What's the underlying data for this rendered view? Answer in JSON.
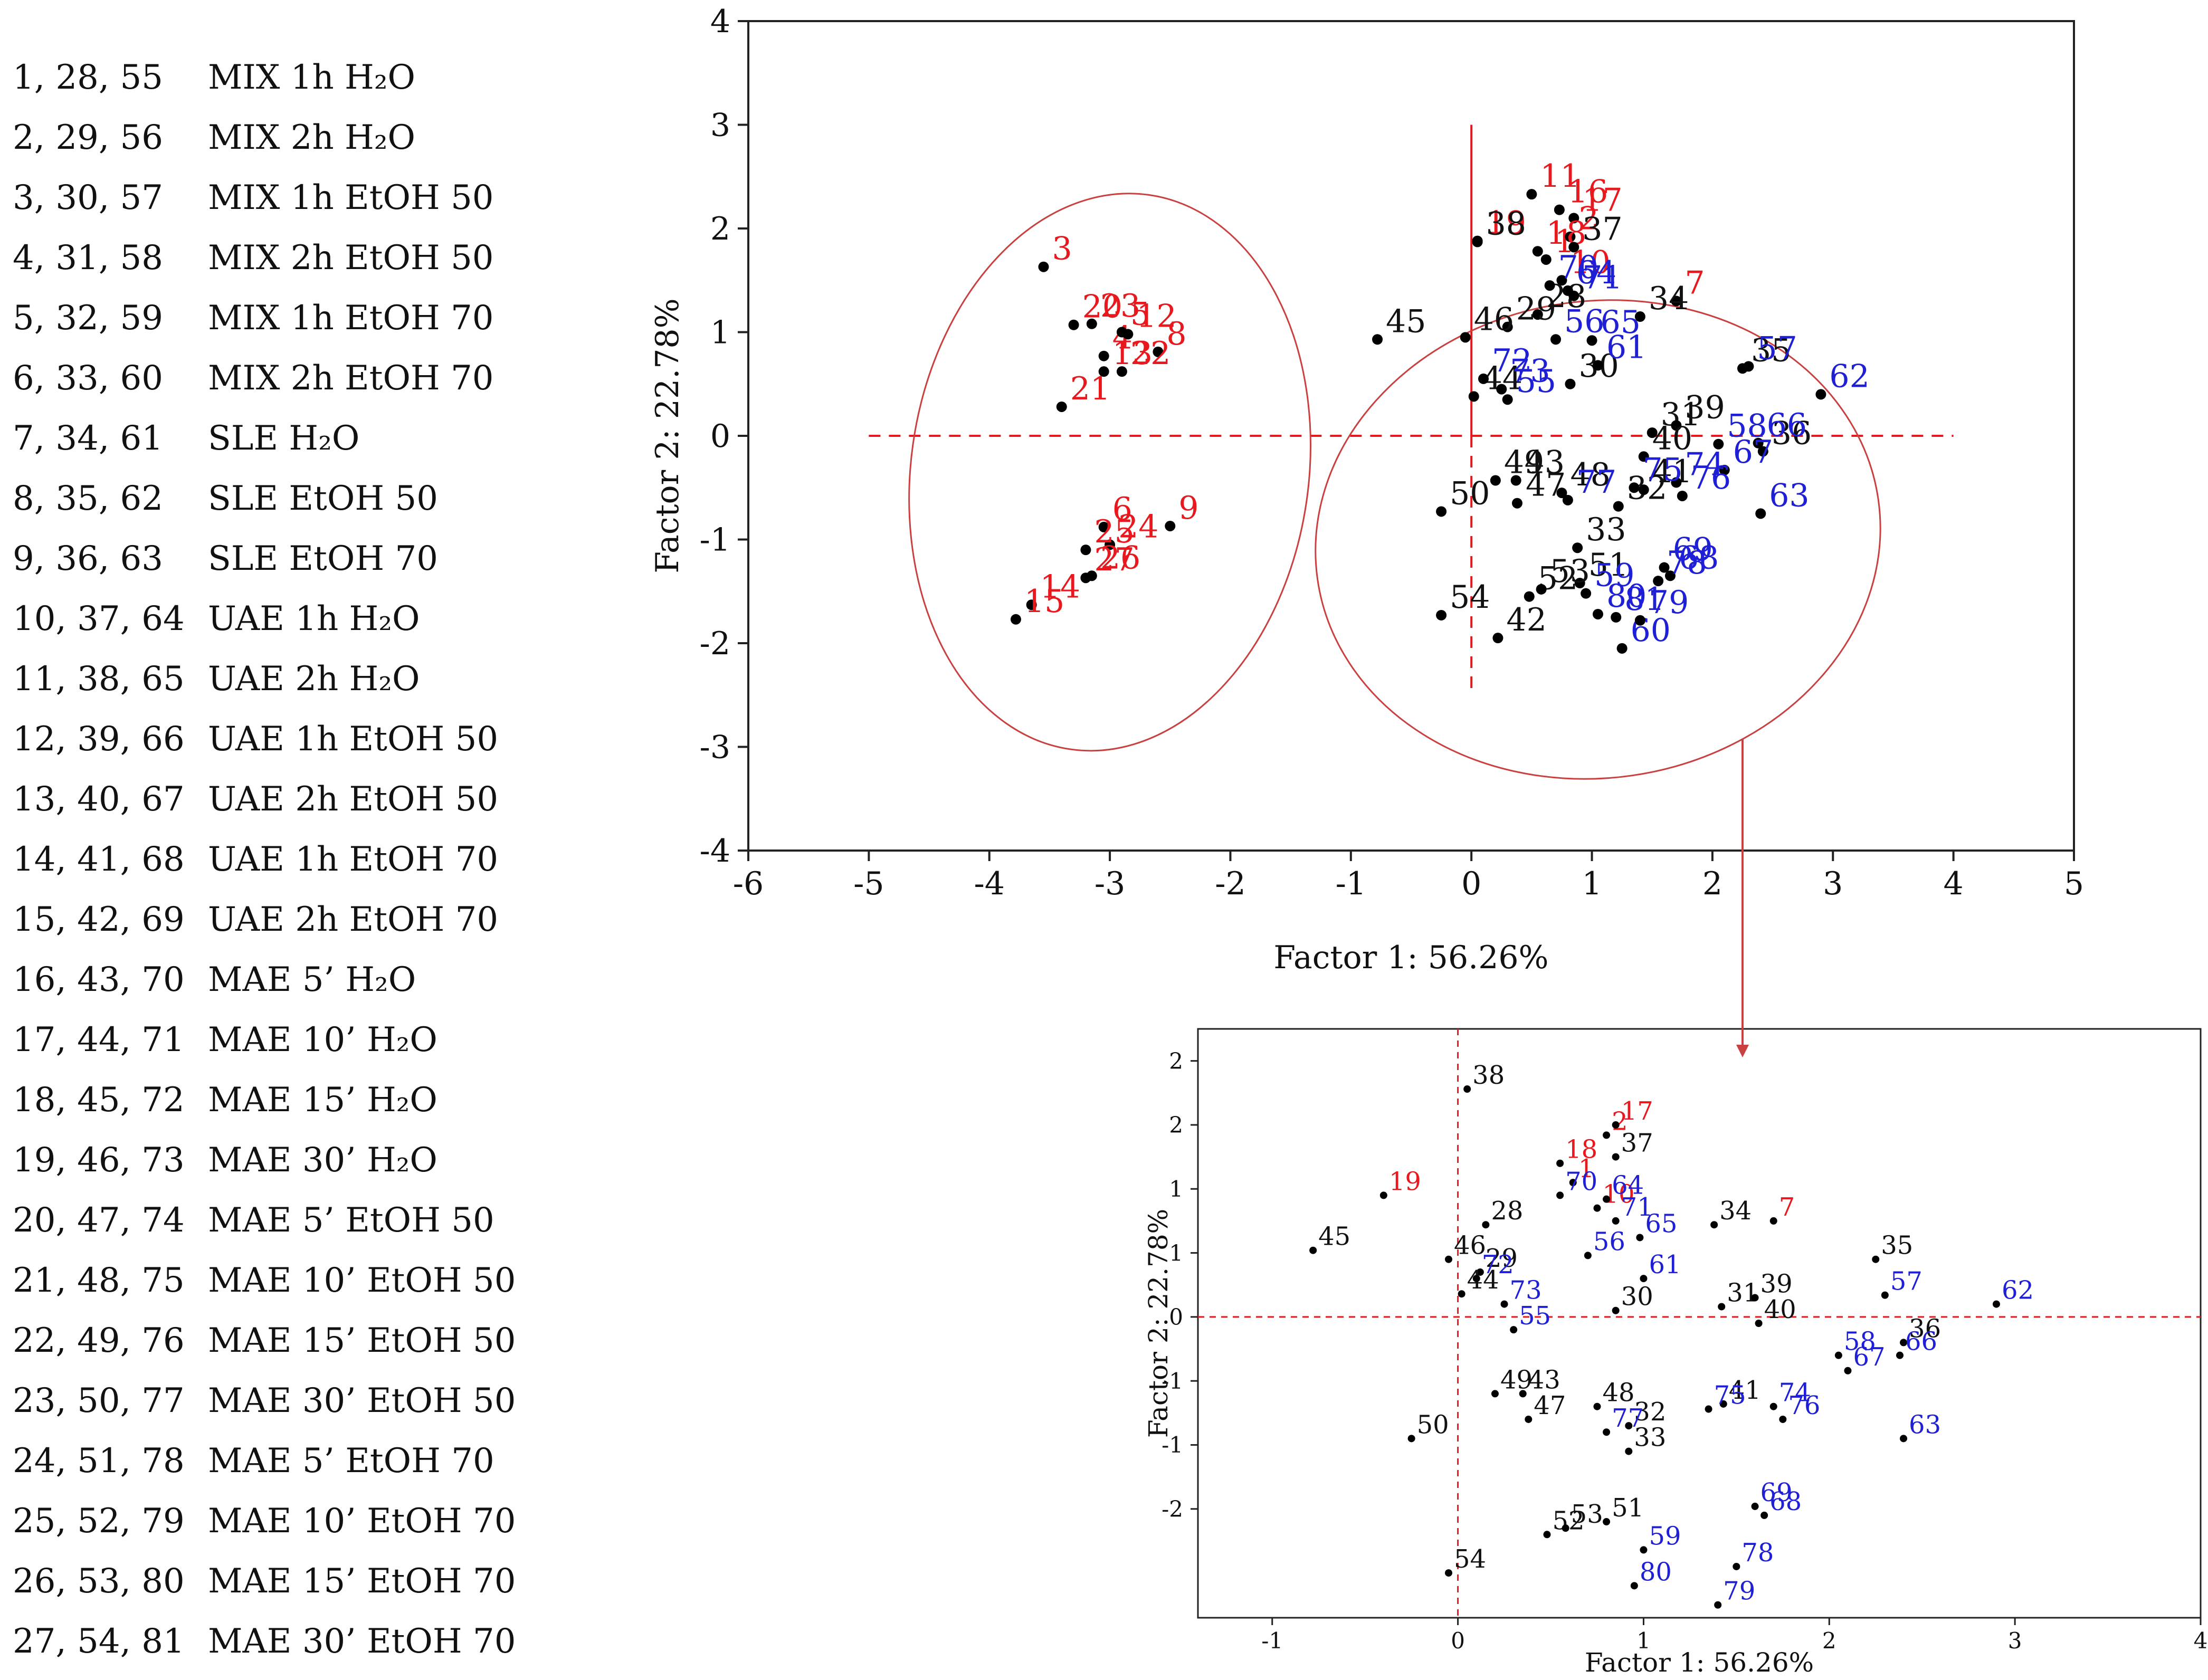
{
  "legend": [
    {
      "ids": "1, 28, 55",
      "label": "MIX 1h H₂O"
    },
    {
      "ids": "2, 29, 56",
      "label": "MIX 2h H₂O"
    },
    {
      "ids": "3, 30, 57",
      "label": "MIX 1h EtOH 50"
    },
    {
      "ids": "4, 31, 58",
      "label": "MIX 2h EtOH 50"
    },
    {
      "ids": "5, 32, 59",
      "label": "MIX 1h EtOH 70"
    },
    {
      "ids": "6, 33, 60",
      "label": "MIX 2h EtOH 70"
    },
    {
      "ids": "7, 34, 61",
      "label": "SLE H₂O"
    },
    {
      "ids": "8, 35, 62",
      "label": "SLE EtOH 50"
    },
    {
      "ids": "9, 36, 63",
      "label": "SLE EtOH 70"
    },
    {
      "ids": "10, 37, 64",
      "label": "UAE 1h H₂O"
    },
    {
      "ids": "11, 38, 65",
      "label": "UAE 2h H₂O"
    },
    {
      "ids": "12, 39, 66",
      "label": "UAE 1h EtOH 50"
    },
    {
      "ids": "13, 40, 67",
      "label": "UAE 2h EtOH 50"
    },
    {
      "ids": "14, 41, 68",
      "label": "UAE 1h EtOH 70"
    },
    {
      "ids": "15, 42, 69",
      "label": "UAE 2h EtOH 70"
    },
    {
      "ids": "16, 43, 70",
      "label": "MAE 5’ H₂O"
    },
    {
      "ids": "17, 44, 71",
      "label": "MAE 10’ H₂O"
    },
    {
      "ids": "18, 45, 72",
      "label": "MAE 15’ H₂O"
    },
    {
      "ids": "19, 46, 73",
      "label": "MAE 30’ H₂O"
    },
    {
      "ids": "20, 47, 74",
      "label": "MAE 5’ EtOH 50"
    },
    {
      "ids": "21, 48, 75",
      "label": "MAE 10’ EtOH 50"
    },
    {
      "ids": "22, 49, 76",
      "label": "MAE 15’ EtOH 50"
    },
    {
      "ids": "23, 50, 77",
      "label": "MAE 30’ EtOH 50"
    },
    {
      "ids": "24, 51, 78",
      "label": "MAE 5’ EtOH 70"
    },
    {
      "ids": "25, 52, 79",
      "label": "MAE 10’ EtOH 70"
    },
    {
      "ids": "26, 53, 80",
      "label": "MAE 15’ EtOH 70"
    },
    {
      "ids": "27, 54, 81",
      "label": "MAE 30’ EtOH 70"
    }
  ],
  "colors": {
    "group1": "#e8191e",
    "group2": "#111111",
    "group3": "#1f1fd6",
    "frame": "#222222",
    "ellipse": "#c84040",
    "refline": "#e8191e"
  },
  "chart_data": [
    {
      "type": "scatter",
      "title": "",
      "xlabel": "Factor 1: 56.26%",
      "ylabel": "Factor 2: 22.78%",
      "xlim": [
        -6,
        5
      ],
      "ylim": [
        -4,
        4
      ],
      "xticks": [
        "-6",
        "-5",
        "-4",
        "-3",
        "-2",
        "-1",
        "0",
        "1",
        "2",
        "3",
        "4",
        "5"
      ],
      "yticks": [
        "-4",
        "-3",
        "-2",
        "-1",
        "0",
        "1",
        "2",
        "3",
        "4"
      ],
      "points": [
        {
          "label": "1",
          "x": 0.62,
          "y": 1.7,
          "group": 1
        },
        {
          "label": "2",
          "x": 0.82,
          "y": 1.92,
          "group": 1
        },
        {
          "label": "3",
          "x": -3.55,
          "y": 1.63,
          "group": 1
        },
        {
          "label": "4",
          "x": -3.05,
          "y": 0.77,
          "group": 1
        },
        {
          "label": "5",
          "x": -2.9,
          "y": 1.0,
          "group": 1
        },
        {
          "label": "6",
          "x": -3.05,
          "y": -0.88,
          "group": 1
        },
        {
          "label": "7",
          "x": 1.7,
          "y": 1.3,
          "group": 1
        },
        {
          "label": "8",
          "x": -2.6,
          "y": 0.81,
          "group": 1
        },
        {
          "label": "9",
          "x": -2.5,
          "y": -0.87,
          "group": 1
        },
        {
          "label": "10",
          "x": 0.75,
          "y": 1.5,
          "group": 1
        },
        {
          "label": "11",
          "x": 0.5,
          "y": 2.33,
          "group": 1
        },
        {
          "label": "12",
          "x": -2.85,
          "y": 0.98,
          "group": 1
        },
        {
          "label": "13",
          "x": -3.05,
          "y": 0.62,
          "group": 1
        },
        {
          "label": "14",
          "x": -3.65,
          "y": -1.63,
          "group": 1
        },
        {
          "label": "15",
          "x": -3.78,
          "y": -1.77,
          "group": 1
        },
        {
          "label": "16",
          "x": 0.73,
          "y": 2.18,
          "group": 1
        },
        {
          "label": "17",
          "x": 0.85,
          "y": 2.1,
          "group": 1
        },
        {
          "label": "18",
          "x": 0.55,
          "y": 1.78,
          "group": 1
        },
        {
          "label": "19",
          "x": 0.05,
          "y": 1.88,
          "group": 1
        },
        {
          "label": "20",
          "x": -3.3,
          "y": 1.07,
          "group": 1
        },
        {
          "label": "21",
          "x": -3.4,
          "y": 0.28,
          "group": 1
        },
        {
          "label": "22",
          "x": -2.9,
          "y": 0.62,
          "group": 1
        },
        {
          "label": "23",
          "x": -3.15,
          "y": 1.08,
          "group": 1
        },
        {
          "label": "24",
          "x": -3.0,
          "y": -1.05,
          "group": 1
        },
        {
          "label": "25",
          "x": -3.2,
          "y": -1.1,
          "group": 1
        },
        {
          "label": "26",
          "x": -3.15,
          "y": -1.35,
          "group": 1
        },
        {
          "label": "27",
          "x": -3.2,
          "y": -1.37,
          "group": 1
        },
        {
          "label": "28",
          "x": 0.55,
          "y": 1.17,
          "group": 2
        },
        {
          "label": "29",
          "x": 0.3,
          "y": 1.05,
          "group": 2
        },
        {
          "label": "30",
          "x": 0.82,
          "y": 0.5,
          "group": 2
        },
        {
          "label": "31",
          "x": 1.5,
          "y": 0.03,
          "group": 2
        },
        {
          "label": "32",
          "x": 1.22,
          "y": -0.68,
          "group": 2
        },
        {
          "label": "33",
          "x": 0.88,
          "y": -1.08,
          "group": 2
        },
        {
          "label": "34",
          "x": 1.4,
          "y": 1.15,
          "group": 2
        },
        {
          "label": "35",
          "x": 2.25,
          "y": 0.65,
          "group": 2
        },
        {
          "label": "36",
          "x": 2.42,
          "y": -0.15,
          "group": 2
        },
        {
          "label": "37",
          "x": 0.85,
          "y": 1.82,
          "group": 2
        },
        {
          "label": "38",
          "x": 0.05,
          "y": 1.87,
          "group": 2
        },
        {
          "label": "39",
          "x": 1.7,
          "y": 0.1,
          "group": 2
        },
        {
          "label": "40",
          "x": 1.43,
          "y": -0.2,
          "group": 2
        },
        {
          "label": "41",
          "x": 1.43,
          "y": -0.52,
          "group": 2
        },
        {
          "label": "42",
          "x": 0.22,
          "y": -1.95,
          "group": 2
        },
        {
          "label": "43",
          "x": 0.37,
          "y": -0.43,
          "group": 2
        },
        {
          "label": "44",
          "x": 0.02,
          "y": 0.38,
          "group": 2
        },
        {
          "label": "45",
          "x": -0.78,
          "y": 0.93,
          "group": 2
        },
        {
          "label": "46",
          "x": -0.05,
          "y": 0.95,
          "group": 2
        },
        {
          "label": "47",
          "x": 0.38,
          "y": -0.65,
          "group": 2
        },
        {
          "label": "48",
          "x": 0.75,
          "y": -0.55,
          "group": 2
        },
        {
          "label": "49",
          "x": 0.2,
          "y": -0.43,
          "group": 2
        },
        {
          "label": "50",
          "x": -0.25,
          "y": -0.73,
          "group": 2
        },
        {
          "label": "51",
          "x": 0.9,
          "y": -1.42,
          "group": 2
        },
        {
          "label": "52",
          "x": 0.48,
          "y": -1.55,
          "group": 2
        },
        {
          "label": "53",
          "x": 0.58,
          "y": -1.48,
          "group": 2
        },
        {
          "label": "54",
          "x": -0.25,
          "y": -1.73,
          "group": 2
        },
        {
          "label": "55",
          "x": 0.3,
          "y": 0.35,
          "group": 3
        },
        {
          "label": "56",
          "x": 0.7,
          "y": 0.93,
          "group": 3
        },
        {
          "label": "57",
          "x": 2.3,
          "y": 0.67,
          "group": 3
        },
        {
          "label": "58",
          "x": 2.05,
          "y": -0.08,
          "group": 3
        },
        {
          "label": "59",
          "x": 0.95,
          "y": -1.52,
          "group": 3
        },
        {
          "label": "60",
          "x": 1.25,
          "y": -2.05,
          "group": 3
        },
        {
          "label": "61",
          "x": 1.05,
          "y": 0.68,
          "group": 3
        },
        {
          "label": "62",
          "x": 2.9,
          "y": 0.4,
          "group": 3
        },
        {
          "label": "63",
          "x": 2.4,
          "y": -0.75,
          "group": 3
        },
        {
          "label": "64",
          "x": 0.8,
          "y": 1.4,
          "group": 3
        },
        {
          "label": "65",
          "x": 1.0,
          "y": 0.92,
          "group": 3
        },
        {
          "label": "66",
          "x": 2.38,
          "y": -0.07,
          "group": 3
        },
        {
          "label": "67",
          "x": 2.1,
          "y": -0.33,
          "group": 3
        },
        {
          "label": "68",
          "x": 1.65,
          "y": -1.35,
          "group": 3
        },
        {
          "label": "69",
          "x": 1.6,
          "y": -1.27,
          "group": 3
        },
        {
          "label": "70",
          "x": 0.65,
          "y": 1.45,
          "group": 3
        },
        {
          "label": "71",
          "x": 0.85,
          "y": 1.35,
          "group": 3
        },
        {
          "label": "72",
          "x": 0.1,
          "y": 0.55,
          "group": 3
        },
        {
          "label": "73",
          "x": 0.25,
          "y": 0.45,
          "group": 3
        },
        {
          "label": "74",
          "x": 1.7,
          "y": -0.45,
          "group": 3
        },
        {
          "label": "75",
          "x": 1.35,
          "y": -0.5,
          "group": 3
        },
        {
          "label": "76",
          "x": 1.75,
          "y": -0.58,
          "group": 3
        },
        {
          "label": "77",
          "x": 0.8,
          "y": -0.62,
          "group": 3
        },
        {
          "label": "78",
          "x": 1.55,
          "y": -1.4,
          "group": 3
        },
        {
          "label": "79",
          "x": 1.4,
          "y": -1.78,
          "group": 3
        },
        {
          "label": "80",
          "x": 1.05,
          "y": -1.72,
          "group": 3
        },
        {
          "label": "81",
          "x": 1.2,
          "y": -1.75,
          "group": 3
        }
      ]
    },
    {
      "type": "scatter",
      "title": "",
      "xlabel": "Factor 1: 56.26%",
      "ylabel": "Factor 2: 22.78%",
      "xlim": [
        -1.4,
        4
      ],
      "ylim": [
        -2.35,
        2.25
      ],
      "xticks": [
        "-1",
        "0",
        "1",
        "2",
        "3",
        "4"
      ],
      "yticks": [
        "2",
        "2",
        "1",
        "1",
        "0",
        "-1",
        "-1",
        "-2"
      ],
      "points": [
        {
          "label": "1",
          "x": 0.62,
          "y": 1.05,
          "group": 1
        },
        {
          "label": "2",
          "x": 0.8,
          "y": 1.42,
          "group": 1
        },
        {
          "label": "7",
          "x": 1.7,
          "y": 0.75,
          "group": 1
        },
        {
          "label": "10",
          "x": 0.75,
          "y": 0.85,
          "group": 1
        },
        {
          "label": "17",
          "x": 0.85,
          "y": 1.5,
          "group": 1
        },
        {
          "label": "18",
          "x": 0.55,
          "y": 1.2,
          "group": 1
        },
        {
          "label": "19",
          "x": -0.4,
          "y": 0.95,
          "group": 1
        },
        {
          "label": "28",
          "x": 0.15,
          "y": 0.72,
          "group": 2
        },
        {
          "label": "29",
          "x": 0.12,
          "y": 0.35,
          "group": 2
        },
        {
          "label": "30",
          "x": 0.85,
          "y": 0.05,
          "group": 2
        },
        {
          "label": "31",
          "x": 1.42,
          "y": 0.08,
          "group": 2
        },
        {
          "label": "32",
          "x": 0.92,
          "y": -0.85,
          "group": 2
        },
        {
          "label": "33",
          "x": 0.92,
          "y": -1.05,
          "group": 2
        },
        {
          "label": "34",
          "x": 1.38,
          "y": 0.72,
          "group": 2
        },
        {
          "label": "35",
          "x": 2.25,
          "y": 0.45,
          "group": 2
        },
        {
          "label": "36",
          "x": 2.4,
          "y": -0.2,
          "group": 2
        },
        {
          "label": "37",
          "x": 0.85,
          "y": 1.25,
          "group": 2
        },
        {
          "label": "38",
          "x": 0.05,
          "y": 1.78,
          "group": 2
        },
        {
          "label": "39",
          "x": 1.6,
          "y": 0.15,
          "group": 2
        },
        {
          "label": "40",
          "x": 1.62,
          "y": -0.05,
          "group": 2
        },
        {
          "label": "41",
          "x": 1.43,
          "y": -0.68,
          "group": 2
        },
        {
          "label": "43",
          "x": 0.35,
          "y": -0.6,
          "group": 2
        },
        {
          "label": "44",
          "x": 0.02,
          "y": 0.18,
          "group": 2
        },
        {
          "label": "45",
          "x": -0.78,
          "y": 0.52,
          "group": 2
        },
        {
          "label": "46",
          "x": -0.05,
          "y": 0.45,
          "group": 2
        },
        {
          "label": "47",
          "x": 0.38,
          "y": -0.8,
          "group": 2
        },
        {
          "label": "48",
          "x": 0.75,
          "y": -0.7,
          "group": 2
        },
        {
          "label": "49",
          "x": 0.2,
          "y": -0.6,
          "group": 2
        },
        {
          "label": "50",
          "x": -0.25,
          "y": -0.95,
          "group": 2
        },
        {
          "label": "51",
          "x": 0.8,
          "y": -1.6,
          "group": 2
        },
        {
          "label": "52",
          "x": 0.48,
          "y": -1.7,
          "group": 2
        },
        {
          "label": "53",
          "x": 0.58,
          "y": -1.65,
          "group": 2
        },
        {
          "label": "54",
          "x": -0.05,
          "y": -2.0,
          "group": 2
        },
        {
          "label": "55",
          "x": 0.3,
          "y": -0.1,
          "group": 3
        },
        {
          "label": "56",
          "x": 0.7,
          "y": 0.48,
          "group": 3
        },
        {
          "label": "57",
          "x": 2.3,
          "y": 0.17,
          "group": 3
        },
        {
          "label": "58",
          "x": 2.05,
          "y": -0.3,
          "group": 3
        },
        {
          "label": "59",
          "x": 1.0,
          "y": -1.82,
          "group": 3
        },
        {
          "label": "61",
          "x": 1.0,
          "y": 0.3,
          "group": 3
        },
        {
          "label": "62",
          "x": 2.9,
          "y": 0.1,
          "group": 3
        },
        {
          "label": "63",
          "x": 2.4,
          "y": -0.95,
          "group": 3
        },
        {
          "label": "64",
          "x": 0.8,
          "y": 0.92,
          "group": 3
        },
        {
          "label": "65",
          "x": 0.98,
          "y": 0.62,
          "group": 3
        },
        {
          "label": "66",
          "x": 2.38,
          "y": -0.3,
          "group": 3
        },
        {
          "label": "67",
          "x": 2.1,
          "y": -0.42,
          "group": 3
        },
        {
          "label": "68",
          "x": 1.65,
          "y": -1.55,
          "group": 3
        },
        {
          "label": "69",
          "x": 1.6,
          "y": -1.48,
          "group": 3
        },
        {
          "label": "70",
          "x": 0.55,
          "y": 0.95,
          "group": 3
        },
        {
          "label": "71",
          "x": 0.85,
          "y": 0.75,
          "group": 3
        },
        {
          "label": "72",
          "x": 0.1,
          "y": 0.3,
          "group": 3
        },
        {
          "label": "73",
          "x": 0.25,
          "y": 0.1,
          "group": 3
        },
        {
          "label": "74",
          "x": 1.7,
          "y": -0.7,
          "group": 3
        },
        {
          "label": "75",
          "x": 1.35,
          "y": -0.72,
          "group": 3
        },
        {
          "label": "76",
          "x": 1.75,
          "y": -0.8,
          "group": 3
        },
        {
          "label": "77",
          "x": 0.8,
          "y": -0.9,
          "group": 3
        },
        {
          "label": "78",
          "x": 1.5,
          "y": -1.95,
          "group": 3
        },
        {
          "label": "79",
          "x": 1.4,
          "y": -2.25,
          "group": 3
        },
        {
          "label": "80",
          "x": 0.95,
          "y": -2.1,
          "group": 3
        }
      ]
    }
  ]
}
